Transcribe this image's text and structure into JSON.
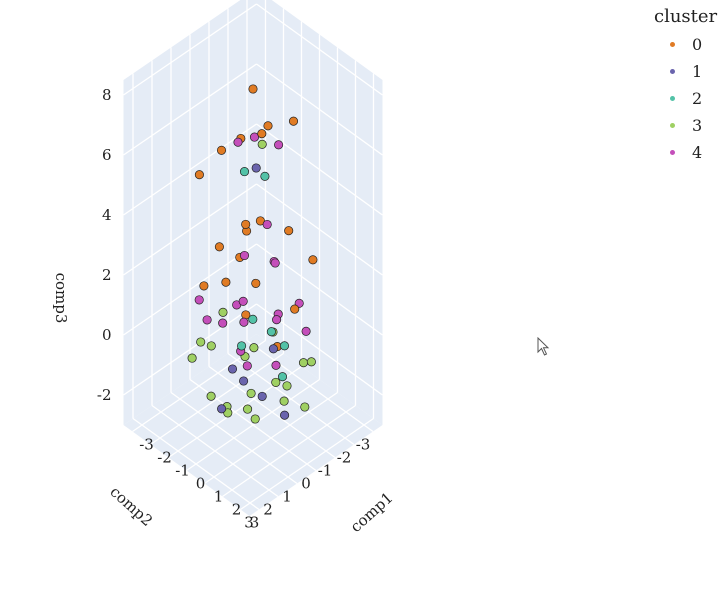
{
  "chart_data": {
    "type": "scatter3d",
    "xlabel": "comp1",
    "ylabel": "comp2",
    "zlabel": "comp3",
    "x_ticks": [
      "-3",
      "-2",
      "-1",
      "0",
      "1",
      "2",
      "3"
    ],
    "y_ticks": [
      "-3",
      "-2",
      "-1",
      "0",
      "1",
      "2",
      "3"
    ],
    "z_ticks": [
      "-2",
      "0",
      "2",
      "4",
      "6",
      "8"
    ],
    "xlim": [
      -3.5,
      3.5
    ],
    "ylim": [
      -3.5,
      3.5
    ],
    "zlim": [
      -3,
      8.5
    ],
    "background": "#e5ecf6",
    "grid": true,
    "legend_position": "top-right",
    "legend_title": "cluster",
    "series": [
      {
        "name": "0",
        "color": "#e07b24",
        "points": [
          [
            -1.2,
            -0.8,
            2.6
          ],
          [
            0.4,
            -1.5,
            3.0
          ],
          [
            1.0,
            0.8,
            2.5
          ],
          [
            -0.6,
            1.2,
            3.2
          ],
          [
            2.0,
            -0.3,
            1.6
          ],
          [
            -2.2,
            0.5,
            0.9
          ],
          [
            0.9,
            -2.3,
            1.9
          ],
          [
            1.5,
            1.8,
            2.1
          ],
          [
            -0.3,
            0.1,
            3.6
          ],
          [
            0.2,
            -0.6,
            6.8
          ],
          [
            -0.8,
            0.9,
            6.2
          ],
          [
            0.7,
            0.2,
            7.1
          ],
          [
            -1.1,
            -0.4,
            5.9
          ],
          [
            -1.5,
            1.4,
            5.3
          ],
          [
            1.3,
            -0.9,
            7.3
          ],
          [
            0.0,
            0.0,
            8.2
          ],
          [
            -2.0,
            -1.2,
            1.2
          ],
          [
            2.3,
            0.9,
            1.0
          ],
          [
            0.5,
            1.9,
            2.8
          ],
          [
            -1.7,
            -2.0,
            2.2
          ]
        ]
      },
      {
        "name": "1",
        "color": "#6a64ad",
        "points": [
          [
            1.8,
            2.2,
            0.2
          ],
          [
            2.2,
            1.6,
            -0.4
          ],
          [
            1.5,
            2.5,
            0.6
          ],
          [
            2.4,
            1.2,
            1.1
          ],
          [
            1.0,
            2.6,
            -0.9
          ],
          [
            0.6,
            0.4,
            6.0
          ],
          [
            2.6,
            0.8,
            -1.2
          ]
        ]
      },
      {
        "name": "2",
        "color": "#53c2a7",
        "points": [
          [
            2.5,
            1.4,
            1.8
          ],
          [
            2.1,
            2.0,
            2.3
          ],
          [
            2.7,
            0.9,
            1.2
          ],
          [
            1.9,
            2.4,
            1.5
          ],
          [
            2.8,
            1.1,
            0.3
          ],
          [
            0.9,
            1.3,
            6.4
          ],
          [
            1.4,
            0.7,
            6.2
          ]
        ]
      },
      {
        "name": "3",
        "color": "#9fd063",
        "points": [
          [
            -1.5,
            -1.0,
            -1.8
          ],
          [
            0.0,
            -1.2,
            -2.1
          ],
          [
            1.2,
            -0.5,
            -1.9
          ],
          [
            -0.6,
            0.8,
            -2.3
          ],
          [
            1.6,
            1.4,
            -1.5
          ],
          [
            -2.0,
            0.3,
            -1.1
          ],
          [
            0.5,
            1.8,
            -1.6
          ],
          [
            -1.0,
            -2.0,
            -1.2
          ],
          [
            2.1,
            0.2,
            -0.7
          ],
          [
            0.8,
            -1.9,
            -1.4
          ],
          [
            -0.3,
            0.0,
            -2.6
          ],
          [
            1.9,
            1.9,
            -0.3
          ],
          [
            -1.8,
            1.5,
            -0.9
          ],
          [
            2.4,
            -0.8,
            -0.2
          ],
          [
            0.1,
            2.3,
            -1.0
          ],
          [
            -2.3,
            -0.6,
            -0.5
          ],
          [
            1.0,
            0.9,
            0.4
          ],
          [
            -0.9,
            1.9,
            0.2
          ],
          [
            1.4,
            -1.4,
            -2.4
          ],
          [
            0.3,
            -0.2,
            6.4
          ]
        ]
      },
      {
        "name": "4",
        "color": "#c44fba",
        "points": [
          [
            -1.0,
            -0.5,
            2.0
          ],
          [
            0.3,
            0.8,
            1.6
          ],
          [
            -0.2,
            -1.3,
            1.8
          ],
          [
            1.1,
            -0.2,
            0.9
          ],
          [
            -1.6,
            0.9,
            0.2
          ],
          [
            0.9,
            1.5,
            0.5
          ],
          [
            -0.5,
            -1.8,
            -0.3
          ],
          [
            1.7,
            0.4,
            -0.1
          ],
          [
            -2.0,
            -0.3,
            -0.6
          ],
          [
            0.0,
            0.3,
            -0.9
          ],
          [
            -1.3,
            1.6,
            1.3
          ],
          [
            1.3,
            -1.2,
            1.1
          ],
          [
            0.6,
            -0.6,
            2.4
          ],
          [
            -0.8,
            0.1,
            0.7
          ],
          [
            2.0,
            -0.9,
            0.6
          ],
          [
            0.4,
            0.3,
            6.9
          ],
          [
            -0.2,
            0.6,
            6.6
          ],
          [
            1.0,
            -0.4,
            6.6
          ],
          [
            -0.9,
            -1.6,
            2.6
          ],
          [
            1.5,
            1.9,
            1.9
          ]
        ]
      }
    ]
  }
}
